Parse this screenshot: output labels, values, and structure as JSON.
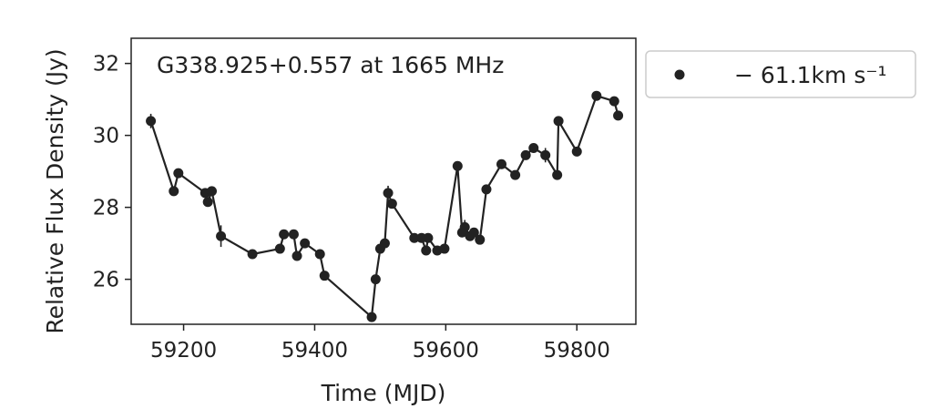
{
  "chart_data": {
    "type": "scatter",
    "title": "G338.925+0.557 at 1665 MHz",
    "xlabel": "Time (MJD)",
    "ylabel": "Relative Flux Density (Jy)",
    "xlim": [
      59120,
      59890
    ],
    "ylim": [
      24.75,
      32.7
    ],
    "xticks": [
      59200,
      59400,
      59600,
      59800
    ],
    "yticks": [
      26,
      28,
      30,
      32
    ],
    "grid": false,
    "legend_position": "outside-right",
    "series": [
      {
        "name": "− 61.1km s⁻¹",
        "color": "#222222",
        "connected": true,
        "x": [
          59150,
          59185,
          59192,
          59233,
          59237,
          59243,
          59257,
          59305,
          59347,
          59353,
          59368,
          59373,
          59385,
          59408,
          59415,
          59487,
          59493,
          59500,
          59507,
          59512,
          59518,
          59552,
          59563,
          59570,
          59573,
          59587,
          59598,
          59618,
          59625,
          59629,
          59637,
          59643,
          59652,
          59662,
          59685,
          59706,
          59722,
          59734,
          59752,
          59770,
          59772,
          59800,
          59830,
          59857,
          59863
        ],
        "y": [
          30.4,
          28.45,
          28.95,
          28.4,
          28.15,
          28.45,
          27.2,
          26.7,
          26.85,
          27.25,
          27.25,
          26.65,
          27.0,
          26.7,
          26.1,
          24.95,
          26.0,
          26.85,
          27.0,
          28.4,
          28.1,
          27.15,
          27.15,
          26.8,
          27.15,
          26.8,
          26.85,
          29.15,
          27.3,
          27.45,
          27.2,
          27.3,
          27.1,
          28.5,
          29.2,
          28.9,
          29.45,
          29.65,
          29.45,
          28.9,
          30.4,
          29.55,
          31.1,
          30.95,
          30.55
        ],
        "yerr": [
          0.2,
          0.1,
          0.1,
          0.1,
          0.1,
          0.1,
          0.3,
          0.05,
          0.05,
          0.1,
          0.1,
          0.1,
          0.05,
          0.1,
          0.05,
          0.05,
          0.1,
          0.1,
          0.1,
          0.2,
          0.1,
          0.05,
          0.05,
          0.1,
          0.05,
          0.05,
          0.05,
          0.1,
          0.1,
          0.2,
          0.1,
          0.05,
          0.1,
          0.1,
          0.05,
          0.05,
          0.1,
          0.05,
          0.2,
          0.1,
          0.1,
          0.05,
          0.1,
          0.1,
          0.1
        ]
      }
    ]
  }
}
